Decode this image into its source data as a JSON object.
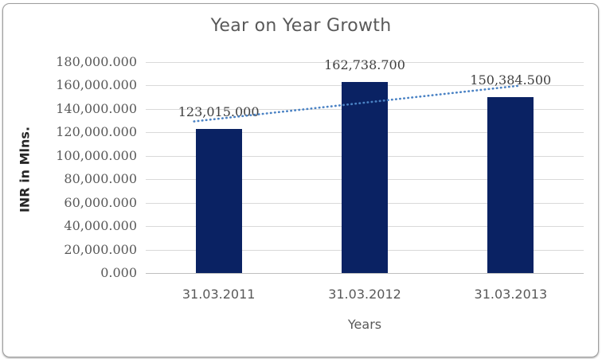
{
  "chart_data": {
    "type": "bar",
    "title": "Year on Year Growth",
    "xlabel": "Years",
    "ylabel": "INR in Mlns.",
    "categories": [
      "31.03.2011",
      "31.03.2012",
      "31.03.2013"
    ],
    "values": [
      123015.0,
      162738.7,
      150384.5
    ],
    "data_labels": [
      "123,015.000",
      "162,738.700",
      "150,384.500"
    ],
    "ytick_labels": [
      "180,000.000",
      "160,000.000",
      "140,000.000",
      "120,000.000",
      "100,000.000",
      "80,000.000",
      "60,000.000",
      "40,000.000",
      "20,000.000",
      "0.000"
    ],
    "ylim": [
      0,
      180000
    ],
    "ytick_step": 20000,
    "grid": true,
    "legend": "none",
    "trendline": "linear-dotted",
    "colors": {
      "bar": "#0A2263",
      "trendline": "#4A82C4",
      "gridline": "#D9D9D9",
      "axis_line": "#BFBFBF",
      "title_text": "#595959",
      "tick_text": "#595959",
      "data_label_text": "#404040",
      "y_title_text": "#262626"
    }
  }
}
